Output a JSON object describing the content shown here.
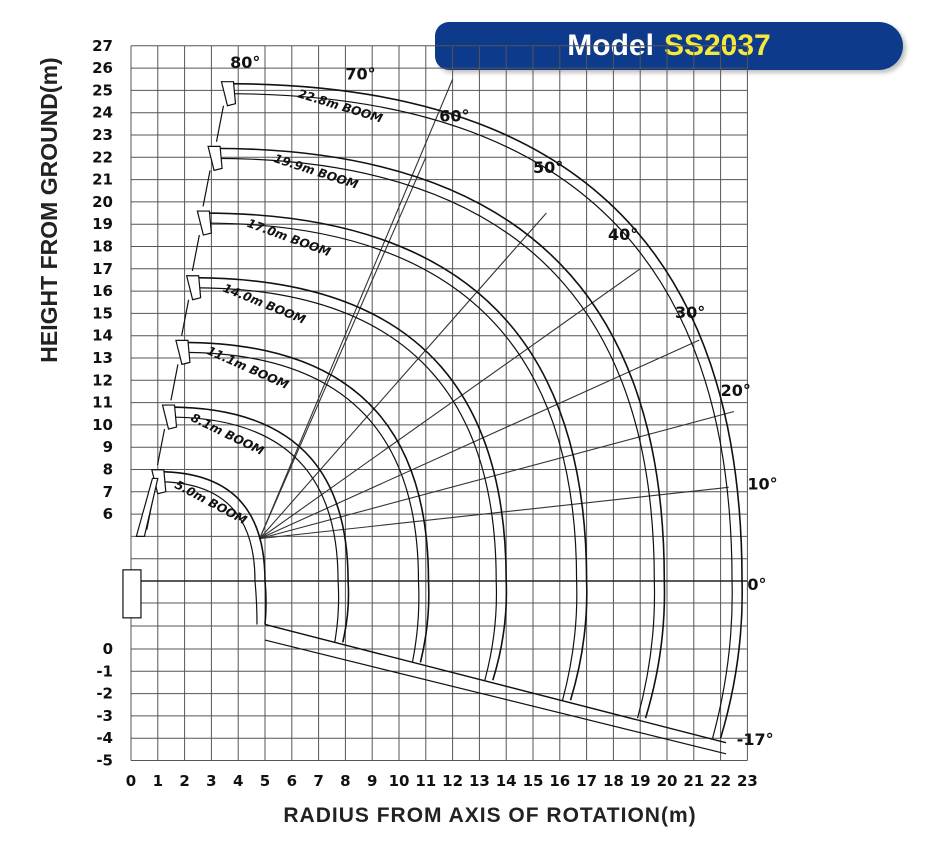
{
  "model_badge": {
    "label": "Model",
    "code": "SS2037",
    "bg_color": "#0d3a8a",
    "code_color": "#f5e93a"
  },
  "chart_data": {
    "type": "line",
    "title": "",
    "xlabel": "RADIUS FROM AXIS OF ROTATION(m)",
    "ylabel": "HEIGHT FROM GROUND(m)",
    "xlim": [
      0,
      23
    ],
    "ylim": [
      -5,
      27
    ],
    "grid": true,
    "x_ticks": [
      "0",
      "1",
      "2",
      "3",
      "4",
      "5",
      "6",
      "7",
      "8",
      "9",
      "10",
      "11",
      "12",
      "13",
      "14",
      "15",
      "16",
      "17",
      "18",
      "19",
      "20",
      "21",
      "22",
      "23"
    ],
    "y_ticks_upper": [
      "6",
      "7",
      "8",
      "9",
      "10",
      "11",
      "12",
      "13",
      "14",
      "15",
      "16",
      "17",
      "18",
      "19",
      "20",
      "21",
      "22",
      "23",
      "24",
      "25",
      "26",
      "27"
    ],
    "y_ticks_lower": [
      "0",
      "-1",
      "-2",
      "-3",
      "-4",
      "-5"
    ],
    "angle_labels": [
      "80°",
      "70°",
      "60°",
      "50°",
      "40°",
      "30°",
      "20°",
      "10°",
      "0°",
      "-17°"
    ],
    "angles": [
      80,
      70,
      60,
      50,
      40,
      30,
      20,
      10,
      0,
      -17
    ],
    "booms": [
      {
        "label": "5.0m BOOM",
        "tip_height_80": 8.0,
        "radius_0": 5.0,
        "height_0": 3.0,
        "radius_min17": 5.0,
        "height_min17": 1.1
      },
      {
        "label": "8.1m BOOM",
        "tip_height_80": 10.8,
        "radius_0": 8.1,
        "height_0": 3.0,
        "radius_min17": 7.9,
        "height_min17": 0.3
      },
      {
        "label": "11.1m BOOM",
        "tip_height_80": 13.7,
        "radius_0": 11.1,
        "height_0": 3.0,
        "radius_min17": 10.8,
        "height_min17": -0.6
      },
      {
        "label": "14.0m BOOM",
        "tip_height_80": 16.6,
        "radius_0": 14.0,
        "height_0": 3.0,
        "radius_min17": 13.5,
        "height_min17": -1.4
      },
      {
        "label": "17.0m BOOM",
        "tip_height_80": 19.5,
        "radius_0": 17.0,
        "height_0": 3.0,
        "radius_min17": 16.4,
        "height_min17": -2.3
      },
      {
        "label": "19.9m BOOM",
        "tip_height_80": 22.4,
        "radius_0": 19.9,
        "height_0": 3.0,
        "radius_min17": 19.2,
        "height_min17": -3.1
      },
      {
        "label": "22.8m BOOM",
        "tip_height_80": 25.3,
        "radius_0": 22.8,
        "height_0": 3.0,
        "radius_min17": 22.0,
        "height_min17": -4.0
      }
    ]
  }
}
